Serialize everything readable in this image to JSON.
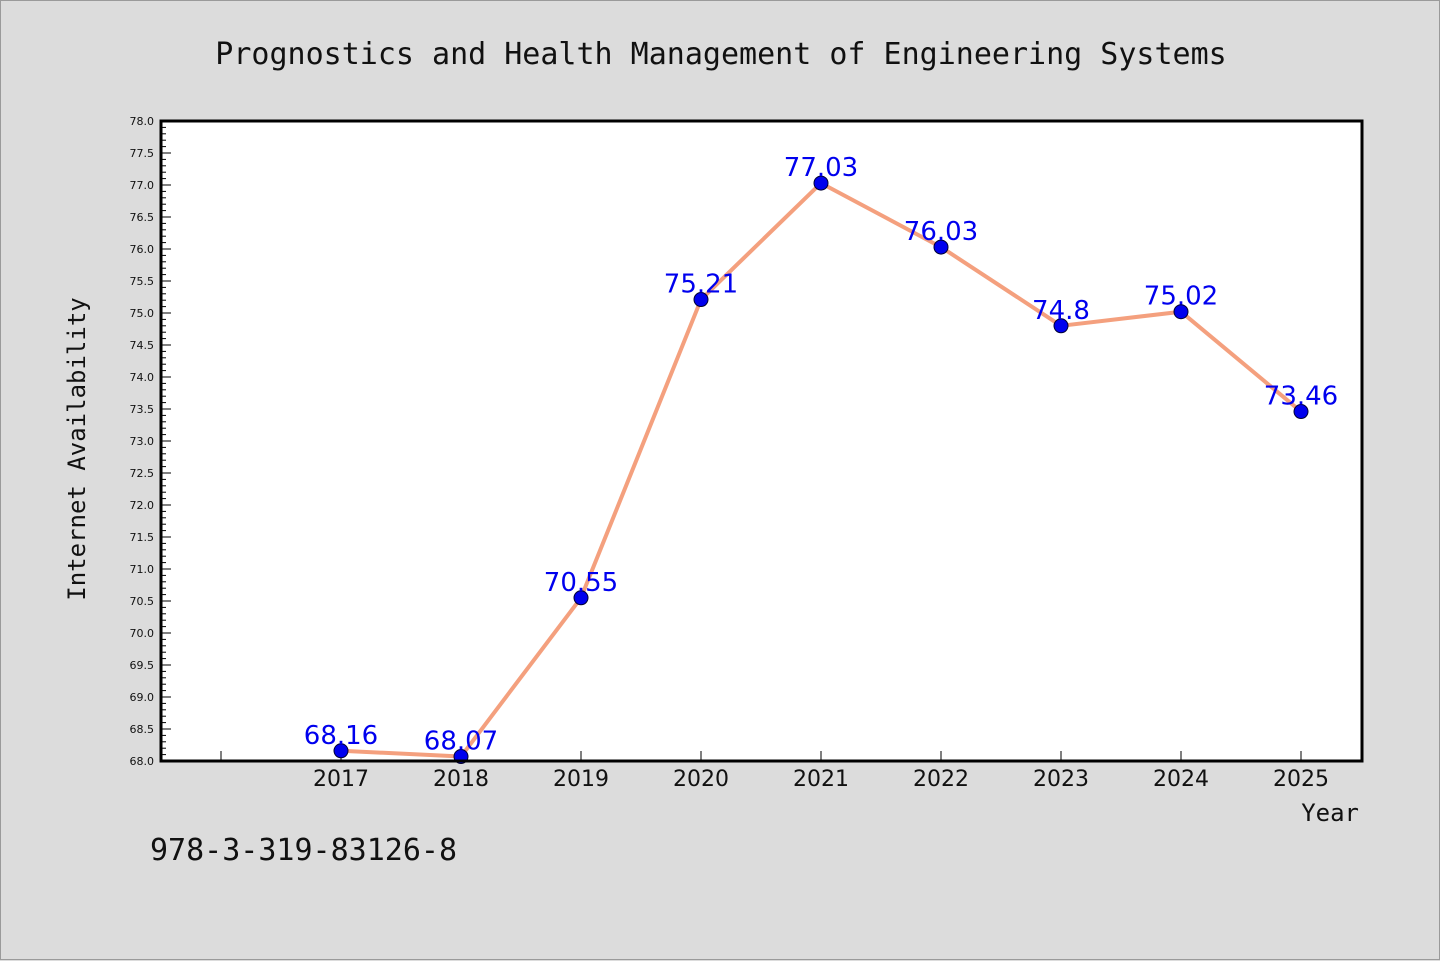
{
  "chart_data": {
    "type": "line",
    "title": "Prognostics and Health Management of Engineering Systems",
    "xlabel": "Year",
    "ylabel": "Internet Availability",
    "categories": [
      "2017",
      "2018",
      "2019",
      "2020",
      "2021",
      "2022",
      "2023",
      "2024",
      "2025"
    ],
    "series": [
      {
        "values": [
          68.16,
          68.07,
          70.55,
          75.21,
          77.03,
          76.03,
          74.8,
          75.02,
          73.46
        ],
        "data_labels": [
          "68.16",
          "68.07",
          "70.55",
          "75.21",
          "77.03",
          "76.03",
          "74.8",
          "75.02",
          "73.46"
        ],
        "line_color": "#f4a07e",
        "marker_color": "#0000ee",
        "label_color": "#0000ee"
      }
    ],
    "ylim": [
      68.0,
      78.0
    ],
    "yticks": [
      "68.0",
      "68.5",
      "69.0",
      "69.5",
      "70.0",
      "70.5",
      "71.0",
      "71.5",
      "72.0",
      "72.5",
      "73.0",
      "73.5",
      "74.0",
      "74.5",
      "75.0",
      "75.5",
      "76.0",
      "76.5",
      "77.0",
      "77.5",
      "78.0"
    ],
    "grid": false,
    "legend": "none"
  },
  "footer": {
    "identifier": "978-3-319-83126-8"
  }
}
